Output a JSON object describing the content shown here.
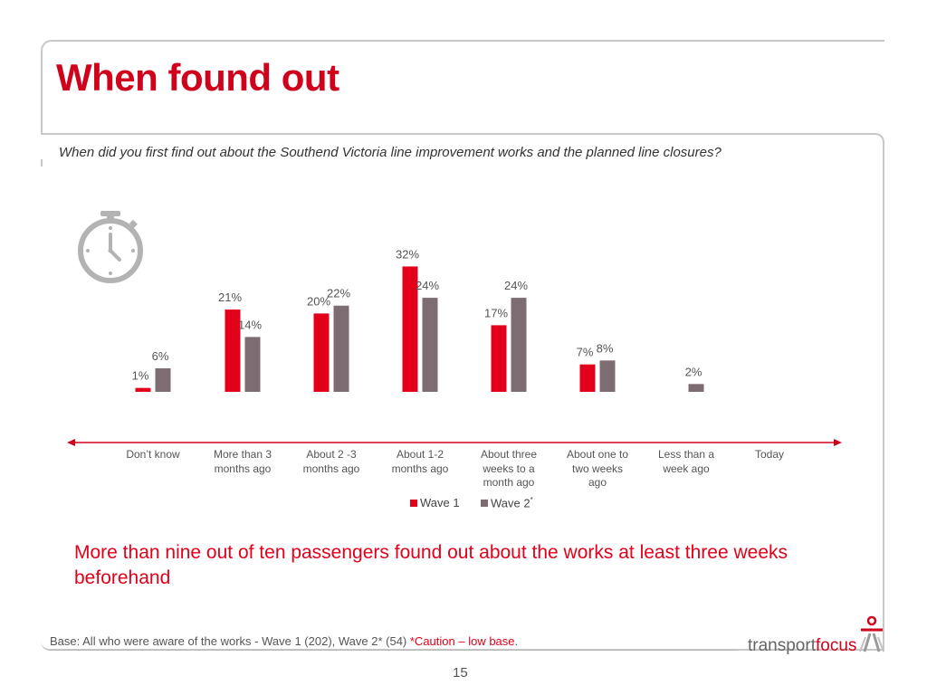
{
  "slide": {
    "title": "When found out",
    "question": "When did you first find out about the Southend Victoria line improvement works and the planned line closures?",
    "conclusion": "More than nine out of ten passengers found out about the works at least three weeks beforehand",
    "base_text": "Base: All who were aware of the works  - Wave 1 (202), Wave 2* (54) ",
    "base_caution": "*Caution – low base",
    "base_end": ".",
    "page_number": "15",
    "logo_prefix": "transport",
    "logo_suffix": "focus"
  },
  "colors": {
    "wave1": "#e2001a",
    "wave2": "#7d6c72",
    "axis": "#d0021b",
    "title": "#d0021b"
  },
  "icons": {
    "timer": "stopwatch-icon",
    "brand": "transportfocus-logo-icon"
  },
  "chart_data": {
    "type": "bar",
    "categories": [
      [
        "Don’t know"
      ],
      [
        "More than 3",
        "months ago"
      ],
      [
        "About 2 -3",
        "months ago"
      ],
      [
        "About 1-2",
        "months ago"
      ],
      [
        "About three",
        "weeks to a",
        "month ago"
      ],
      [
        "About one to",
        "two weeks",
        "ago"
      ],
      [
        "Less than a",
        "week ago"
      ],
      [
        "Today"
      ]
    ],
    "series": [
      {
        "name": "Wave 1",
        "values": [
          1,
          21,
          20,
          32,
          17,
          7,
          null,
          null
        ],
        "labels": [
          "1%",
          "21%",
          "20%",
          "32%",
          "17%",
          "7%",
          "",
          ""
        ]
      },
      {
        "name": "Wave 2",
        "name_suffix": "*",
        "values": [
          6,
          14,
          22,
          24,
          24,
          8,
          2,
          null
        ],
        "labels": [
          "6%",
          "14%",
          "22%",
          "24%",
          "24%",
          "8%",
          "2%",
          ""
        ]
      }
    ],
    "ylim": [
      0,
      32
    ],
    "grid": false,
    "legend": "bottom"
  }
}
